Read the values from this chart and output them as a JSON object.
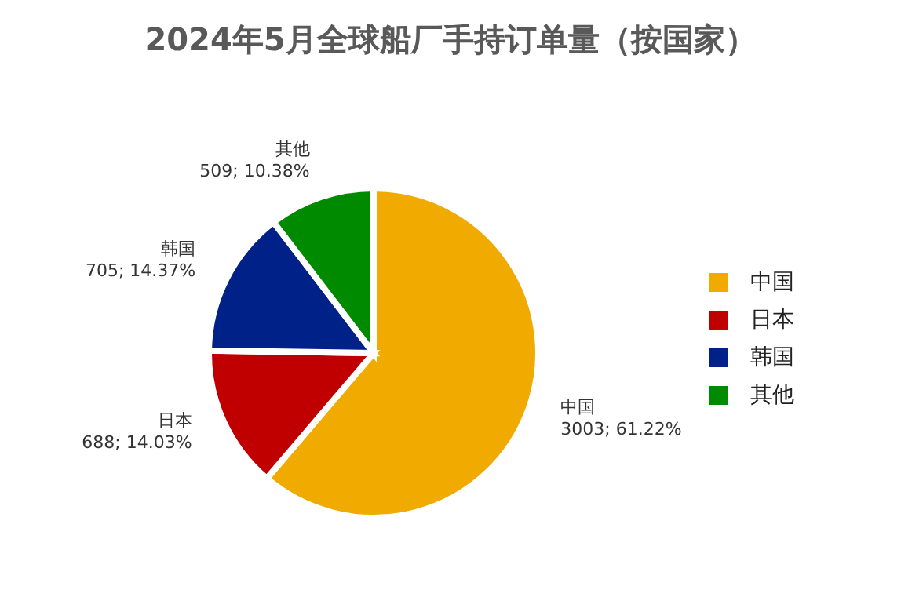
{
  "chart_data": {
    "type": "pie",
    "title": "2024年5月全球船厂手持订单量（按国家）",
    "categories": [
      "中国",
      "日本",
      "韩国",
      "其他"
    ],
    "values": [
      3003,
      688,
      705,
      509
    ],
    "value_labels": [
      "3003; 61.22%",
      "688; 14.03%",
      "705; 14.37%",
      "509; 10.38%"
    ],
    "colors": [
      "#f0aa00",
      "#c00000",
      "#002288",
      "#008a00"
    ],
    "legend": "right"
  }
}
